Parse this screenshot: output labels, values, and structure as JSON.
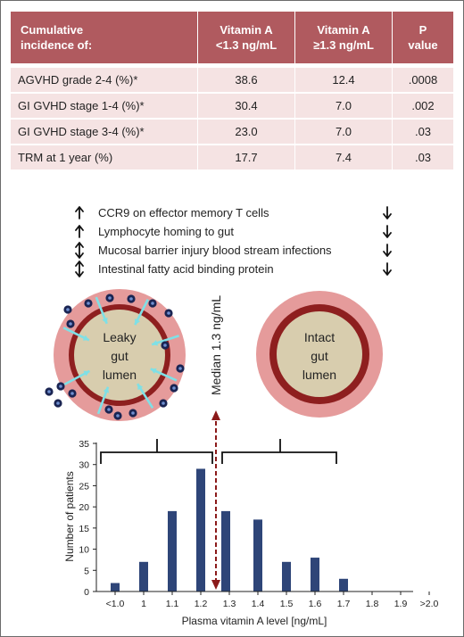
{
  "table": {
    "headers": [
      "Cumulative incidence of:",
      "Vitamin A <1.3 ng/mL",
      "Vitamin A ≥1.3 ng/mL",
      "P value"
    ],
    "header_lines": [
      [
        "Cumulative",
        "incidence of:"
      ],
      [
        "Vitamin A",
        "<1.3 ng/mL"
      ],
      [
        "Vitamin A",
        "≥1.3 ng/mL"
      ],
      [
        "P",
        "value"
      ]
    ],
    "rows": [
      {
        "label": "AGVHD grade 2-4 (%)*",
        "low": "38.6",
        "high": "12.4",
        "p": ".0008"
      },
      {
        "label": "GI GVHD stage 1-4 (%)*",
        "low": "30.4",
        "high": "7.0",
        "p": ".002"
      },
      {
        "label": "GI GVHD stage 3-4 (%)*",
        "low": "23.0",
        "high": "7.0",
        "p": ".03"
      },
      {
        "label": "TRM at 1 year (%)",
        "low": "17.7",
        "high": "7.4",
        "p": ".03"
      }
    ],
    "colors": {
      "header": "#b05a5f",
      "row": "#f5e3e3"
    }
  },
  "effects": [
    {
      "text": "CCR9 on effector memory T cells",
      "left_arrow": "up",
      "right_arrow": "down"
    },
    {
      "text": "Lymphocyte homing to gut",
      "left_arrow": "up",
      "right_arrow": "down"
    },
    {
      "text": "Mucosal barrier injury blood stream infections",
      "left_arrow": "up-down",
      "right_arrow": "down"
    },
    {
      "text": "Intestinal fatty acid binding protein",
      "left_arrow": "up-down",
      "right_arrow": "down"
    }
  ],
  "gut_leaky": {
    "label_lines": [
      "Leaky",
      "gut",
      "lumen"
    ]
  },
  "gut_intact": {
    "label_lines": [
      "Intact",
      "gut",
      "lumen"
    ]
  },
  "median_label": "Median 1.3 ng/mL",
  "colors": {
    "gut_outer": "#e59b9b",
    "gut_ring": "#8e1f1f",
    "gut_inner": "#d8cdae",
    "cell": "#1a2452",
    "cell_inner": "#6f8fd0",
    "arrow_cyan": "#7fe0e6",
    "median_line": "#8b1a1a",
    "bar": "#2e4578"
  },
  "chart_data": {
    "type": "bar",
    "categories": [
      "<1.0",
      "1",
      "1.1",
      "1.2",
      "1.3",
      "1.4",
      "1.5",
      "1.6",
      "1.7",
      "1.8",
      "1.9",
      ">2.0"
    ],
    "bars": [
      {
        "category": "<1.0",
        "side": "left",
        "value": 2
      },
      {
        "category": "1",
        "side": "left",
        "value": 7
      },
      {
        "category": "1.1",
        "side": "left",
        "value": 19
      },
      {
        "category": "1.2",
        "side": "left",
        "value": 29
      },
      {
        "category": "1.3",
        "side": "left",
        "value": 0
      },
      {
        "category": "1.3",
        "side": "right",
        "value": 19
      },
      {
        "category": "1.4",
        "side": "right",
        "value": 17
      },
      {
        "category": "1.5",
        "side": "right",
        "value": 7
      },
      {
        "category": "1.6",
        "side": "right",
        "value": 8
      },
      {
        "category": "1.7",
        "side": "right",
        "value": 3
      },
      {
        "category": "1.8",
        "side": "right",
        "value": 0
      },
      {
        "category": "1.9",
        "side": "right",
        "value": 0
      },
      {
        "category": ">2.0",
        "side": "right",
        "value": 0
      }
    ],
    "yticks": [
      0,
      5,
      10,
      15,
      20,
      25,
      30,
      35
    ],
    "ylim": [
      0,
      35
    ],
    "xlabel": "Plasma vitamin A level [ng/mL]",
    "ylabel": "Number of patients",
    "median": 1.3,
    "grid": false
  }
}
